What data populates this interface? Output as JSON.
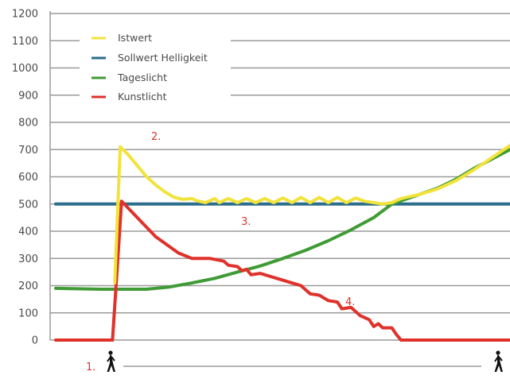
{
  "chart_data": {
    "type": "line",
    "ylim": [
      0,
      1200
    ],
    "yticks": [
      "0",
      "100",
      "200",
      "300",
      "400",
      "500",
      "600",
      "700",
      "800",
      "900",
      "1000",
      "1100",
      "1200"
    ],
    "grid": true,
    "legend_position": "top-left",
    "series": [
      {
        "name": "Istwert",
        "color": "#f2e33b",
        "points": [
          [
            0.13,
            210
          ],
          [
            0.142,
            710
          ],
          [
            0.16,
            680
          ],
          [
            0.18,
            640
          ],
          [
            0.2,
            600
          ],
          [
            0.22,
            570
          ],
          [
            0.24,
            545
          ],
          [
            0.26,
            525
          ],
          [
            0.28,
            517
          ],
          [
            0.3,
            520
          ],
          [
            0.31,
            512
          ],
          [
            0.33,
            505
          ],
          [
            0.35,
            520
          ],
          [
            0.36,
            505
          ],
          [
            0.38,
            520
          ],
          [
            0.4,
            505
          ],
          [
            0.42,
            520
          ],
          [
            0.44,
            505
          ],
          [
            0.46,
            520
          ],
          [
            0.48,
            505
          ],
          [
            0.5,
            522
          ],
          [
            0.52,
            505
          ],
          [
            0.54,
            524
          ],
          [
            0.56,
            505
          ],
          [
            0.58,
            524
          ],
          [
            0.6,
            505
          ],
          [
            0.62,
            524
          ],
          [
            0.64,
            505
          ],
          [
            0.66,
            522
          ],
          [
            0.68,
            510
          ],
          [
            0.7,
            505
          ],
          [
            0.72,
            500
          ],
          [
            0.74,
            505
          ],
          [
            0.76,
            520
          ],
          [
            0.8,
            535
          ],
          [
            0.84,
            555
          ],
          [
            0.88,
            585
          ],
          [
            0.92,
            625
          ],
          [
            0.96,
            670
          ],
          [
            1.0,
            715
          ]
        ]
      },
      {
        "name": "Sollwert Helligkeit",
        "color": "#2b6d8c",
        "points": [
          [
            0.0,
            500
          ],
          [
            1.0,
            500
          ]
        ]
      },
      {
        "name": "Tageslicht",
        "color": "#3f9b35",
        "points": [
          [
            0.0,
            190
          ],
          [
            0.1,
            187
          ],
          [
            0.2,
            187
          ],
          [
            0.25,
            195
          ],
          [
            0.3,
            210
          ],
          [
            0.35,
            227
          ],
          [
            0.4,
            250
          ],
          [
            0.45,
            272
          ],
          [
            0.5,
            300
          ],
          [
            0.55,
            330
          ],
          [
            0.6,
            365
          ],
          [
            0.65,
            405
          ],
          [
            0.7,
            450
          ],
          [
            0.74,
            500
          ],
          [
            0.8,
            535
          ],
          [
            0.84,
            558
          ],
          [
            0.88,
            590
          ],
          [
            0.92,
            630
          ],
          [
            0.96,
            665
          ],
          [
            1.0,
            700
          ]
        ]
      },
      {
        "name": "Kunstlicht",
        "color": "#e0312a",
        "points": [
          [
            0.0,
            0
          ],
          [
            0.108,
            0
          ],
          [
            0.125,
            0
          ],
          [
            0.145,
            510
          ],
          [
            0.22,
            380
          ],
          [
            0.27,
            320
          ],
          [
            0.3,
            300
          ],
          [
            0.34,
            300
          ],
          [
            0.37,
            290
          ],
          [
            0.38,
            275
          ],
          [
            0.4,
            270
          ],
          [
            0.41,
            255
          ],
          [
            0.42,
            260
          ],
          [
            0.43,
            240
          ],
          [
            0.45,
            245
          ],
          [
            0.47,
            235
          ],
          [
            0.49,
            225
          ],
          [
            0.52,
            210
          ],
          [
            0.54,
            200
          ],
          [
            0.56,
            170
          ],
          [
            0.58,
            165
          ],
          [
            0.6,
            145
          ],
          [
            0.62,
            140
          ],
          [
            0.63,
            115
          ],
          [
            0.65,
            120
          ],
          [
            0.67,
            90
          ],
          [
            0.69,
            75
          ],
          [
            0.7,
            50
          ],
          [
            0.71,
            60
          ],
          [
            0.72,
            45
          ],
          [
            0.74,
            45
          ],
          [
            0.75,
            20
          ],
          [
            0.76,
            0
          ],
          [
            1.0,
            0
          ]
        ]
      }
    ],
    "annotations": [
      {
        "text": "1.",
        "color": "#e0312a"
      },
      {
        "text": "2.",
        "color": "#e0312a"
      },
      {
        "text": "3.",
        "color": "#e0312a"
      },
      {
        "text": "4.",
        "color": "#e0312a"
      }
    ],
    "icons": [
      "walking-person-icon",
      "walking-person-icon"
    ]
  }
}
